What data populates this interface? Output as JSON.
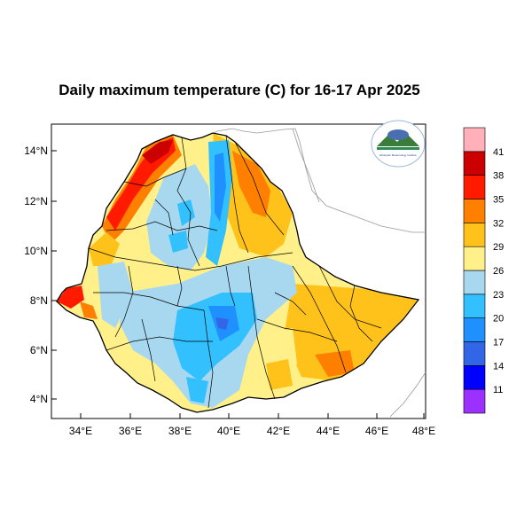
{
  "title": "Daily maximum temperature (C) for 16-17 Apr 2025",
  "lat_ticks": [
    "14°N",
    "12°N",
    "10°N",
    "8°N",
    "6°N",
    "4°N"
  ],
  "lon_ticks": [
    "34°E",
    "36°E",
    "38°E",
    "40°E",
    "42°E",
    "44°E",
    "46°E",
    "48°E"
  ],
  "colorbar": {
    "colors": [
      "#9b30ff",
      "#0000ff",
      "#3366e6",
      "#1e90ff",
      "#33c0ff",
      "#a8d8f0",
      "#fff08a",
      "#ffc21a",
      "#ff8000",
      "#ff1a00",
      "#cc0000",
      "#ffb0b8"
    ],
    "labels": [
      "11",
      "14",
      "17",
      "20",
      "23",
      "26",
      "29",
      "32",
      "35",
      "38",
      "41"
    ]
  },
  "logo": {
    "text": "Ethiopian Meteorology Institute"
  }
}
